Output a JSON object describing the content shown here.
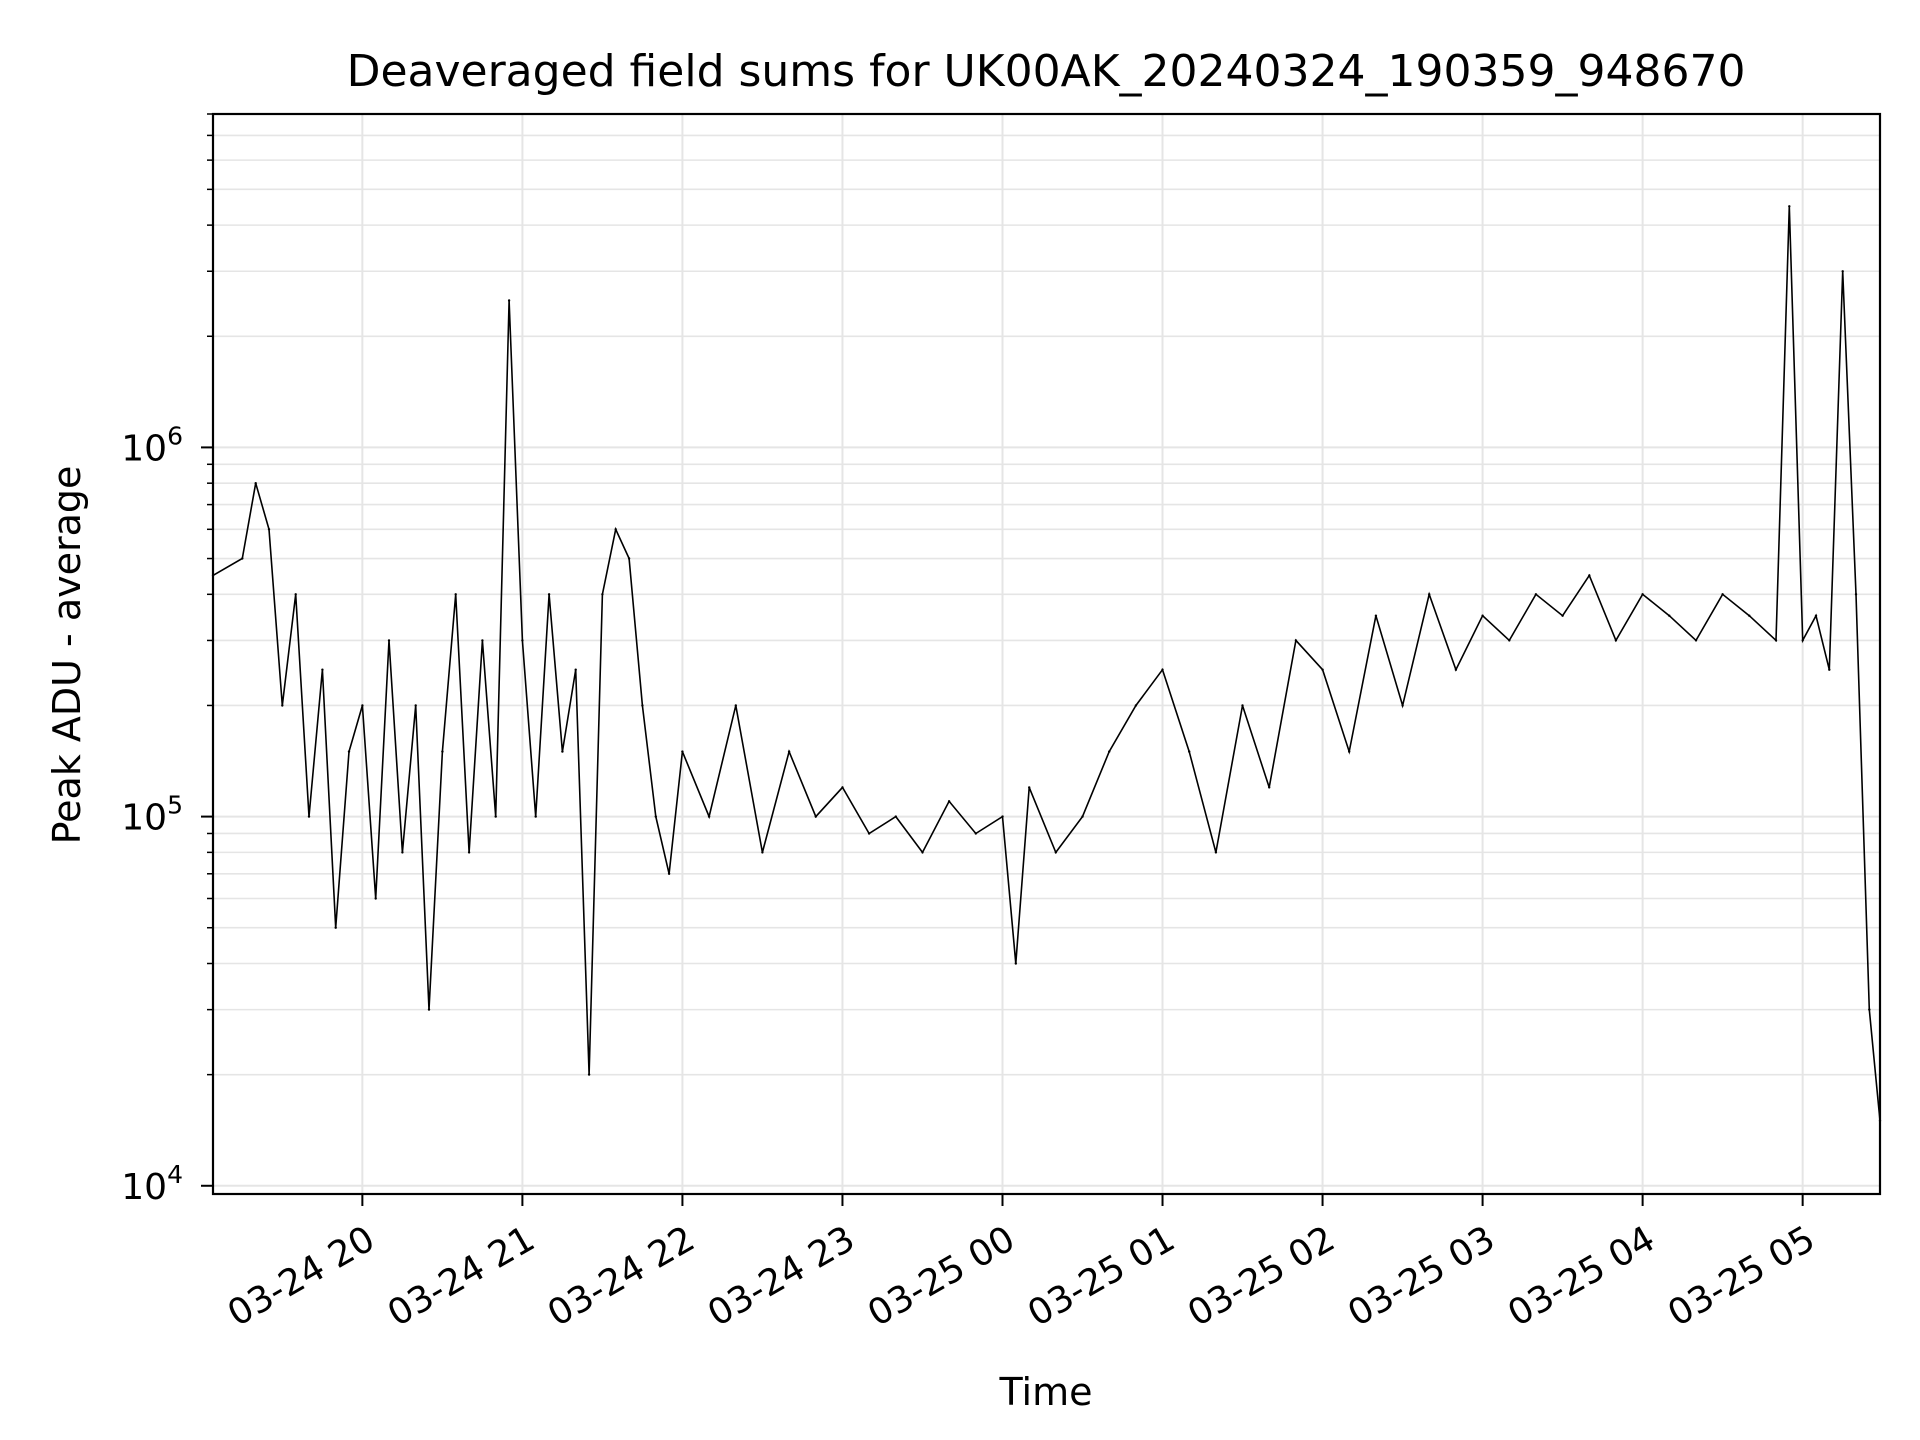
{
  "chart_data": {
    "type": "line",
    "title": "Deaveraged field sums for UK00AK_20240324_190359_948670",
    "xlabel": "Time",
    "ylabel": "Peak ADU - average",
    "yscale": "log",
    "ylim": [
      9500,
      8000000
    ],
    "xlim": [
      "2024-03-24 19:04",
      "2024-03-25 05:29"
    ],
    "x_ticks": [
      {
        "label": "03-24 20",
        "time": "2024-03-24 20:00"
      },
      {
        "label": "03-24 21",
        "time": "2024-03-24 21:00"
      },
      {
        "label": "03-24 22",
        "time": "2024-03-24 22:00"
      },
      {
        "label": "03-24 23",
        "time": "2024-03-24 23:00"
      },
      {
        "label": "03-25 00",
        "time": "2024-03-25 00:00"
      },
      {
        "label": "03-25 01",
        "time": "2024-03-25 01:00"
      },
      {
        "label": "03-25 02",
        "time": "2024-03-25 02:00"
      },
      {
        "label": "03-25 03",
        "time": "2024-03-25 03:00"
      },
      {
        "label": "03-25 04",
        "time": "2024-03-25 04:00"
      },
      {
        "label": "03-25 05",
        "time": "2024-03-25 05:00"
      }
    ],
    "y_ticks": [
      {
        "base": "10",
        "exp": "4",
        "value": 10000
      },
      {
        "base": "10",
        "exp": "5",
        "value": 100000
      },
      {
        "base": "10",
        "exp": "6",
        "value": 1000000
      }
    ],
    "grid": true,
    "line_color": "#000000",
    "series": [
      {
        "x": [
          "2024-03-24 19:04",
          "2024-03-24 19:15",
          "2024-03-24 19:20",
          "2024-03-24 19:25",
          "2024-03-24 19:30",
          "2024-03-24 19:35",
          "2024-03-24 19:40",
          "2024-03-24 19:45",
          "2024-03-24 19:50",
          "2024-03-24 19:55",
          "2024-03-24 20:00",
          "2024-03-24 20:05",
          "2024-03-24 20:10",
          "2024-03-24 20:15",
          "2024-03-24 20:20",
          "2024-03-24 20:25",
          "2024-03-24 20:30",
          "2024-03-24 20:35",
          "2024-03-24 20:40",
          "2024-03-24 20:45",
          "2024-03-24 20:50",
          "2024-03-24 20:55",
          "2024-03-24 21:00",
          "2024-03-24 21:05",
          "2024-03-24 21:10",
          "2024-03-24 21:15",
          "2024-03-24 21:20",
          "2024-03-24 21:25",
          "2024-03-24 21:30",
          "2024-03-24 21:35",
          "2024-03-24 21:40",
          "2024-03-24 21:45",
          "2024-03-24 21:50",
          "2024-03-24 21:55",
          "2024-03-24 22:00",
          "2024-03-24 22:10",
          "2024-03-24 22:20",
          "2024-03-24 22:30",
          "2024-03-24 22:40",
          "2024-03-24 22:50",
          "2024-03-24 23:00",
          "2024-03-24 23:10",
          "2024-03-24 23:20",
          "2024-03-24 23:30",
          "2024-03-24 23:40",
          "2024-03-24 23:50",
          "2024-03-25 00:00",
          "2024-03-25 00:05",
          "2024-03-25 00:10",
          "2024-03-25 00:20",
          "2024-03-25 00:30",
          "2024-03-25 00:40",
          "2024-03-25 00:50",
          "2024-03-25 01:00",
          "2024-03-25 01:10",
          "2024-03-25 01:20",
          "2024-03-25 01:30",
          "2024-03-25 01:40",
          "2024-03-25 01:50",
          "2024-03-25 02:00",
          "2024-03-25 02:10",
          "2024-03-25 02:20",
          "2024-03-25 02:30",
          "2024-03-25 02:40",
          "2024-03-25 02:50",
          "2024-03-25 03:00",
          "2024-03-25 03:10",
          "2024-03-25 03:20",
          "2024-03-25 03:30",
          "2024-03-25 03:40",
          "2024-03-25 03:50",
          "2024-03-25 04:00",
          "2024-03-25 04:10",
          "2024-03-25 04:20",
          "2024-03-25 04:30",
          "2024-03-25 04:40",
          "2024-03-25 04:50",
          "2024-03-25 04:55",
          "2024-03-25 05:00",
          "2024-03-25 05:05",
          "2024-03-25 05:10",
          "2024-03-25 05:15",
          "2024-03-25 05:20",
          "2024-03-25 05:25",
          "2024-03-25 05:29"
        ],
        "values": [
          450000,
          500000,
          800000,
          600000,
          200000,
          400000,
          100000,
          250000,
          50000,
          150000,
          200000,
          60000,
          300000,
          80000,
          200000,
          30000,
          150000,
          400000,
          80000,
          300000,
          100000,
          2500000,
          300000,
          100000,
          400000,
          150000,
          250000,
          20000,
          400000,
          600000,
          500000,
          200000,
          100000,
          70000,
          150000,
          100000,
          200000,
          80000,
          150000,
          100000,
          120000,
          90000,
          100000,
          80000,
          110000,
          90000,
          100000,
          40000,
          120000,
          80000,
          100000,
          150000,
          200000,
          250000,
          150000,
          80000,
          200000,
          120000,
          300000,
          250000,
          150000,
          350000,
          200000,
          400000,
          250000,
          350000,
          300000,
          400000,
          350000,
          450000,
          300000,
          400000,
          350000,
          300000,
          400000,
          350000,
          300000,
          4500000,
          300000,
          350000,
          250000,
          3000000,
          400000,
          30000,
          15000
        ]
      }
    ]
  }
}
